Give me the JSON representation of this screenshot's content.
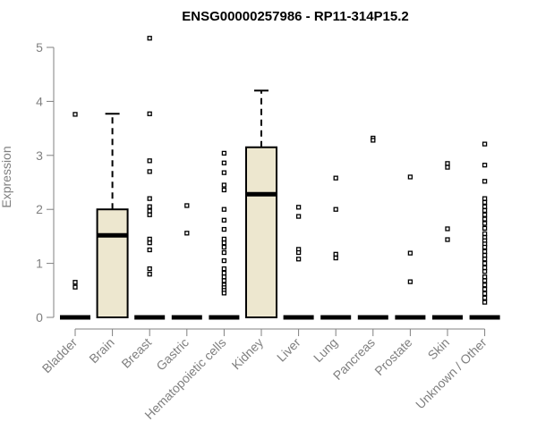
{
  "chart_data": {
    "type": "boxplot",
    "title": "ENSG00000257986 - RP11-314P15.2",
    "xlabel": "",
    "ylabel": "Expression",
    "ylim": [
      0,
      5.2
    ],
    "yticks": [
      0,
      1,
      2,
      3,
      4,
      5
    ],
    "grid": false,
    "legend": "none",
    "categories": [
      "Bladder",
      "Brain",
      "Breast",
      "Gastric",
      "Hematopoietic cells",
      "Kidney",
      "Liver",
      "Lung",
      "Pancreas",
      "Prostate",
      "Skin",
      "Unknown / Other"
    ],
    "boxes": [
      {
        "q1": 0,
        "median": 0,
        "q3": 0,
        "whisker_low": 0,
        "whisker_high": 0,
        "outliers": [
          3.76,
          0.65,
          0.56
        ]
      },
      {
        "q1": 0,
        "median": 1.52,
        "q3": 2.0,
        "whisker_low": 0,
        "whisker_high": 3.77,
        "outliers": []
      },
      {
        "q1": 0,
        "median": 0,
        "q3": 0,
        "whisker_low": 0,
        "whisker_high": 0,
        "outliers": [
          5.17,
          3.77,
          2.9,
          2.7,
          2.2,
          2.05,
          1.97,
          1.9,
          1.45,
          1.38,
          1.25,
          0.9,
          0.8
        ]
      },
      {
        "q1": 0,
        "median": 0,
        "q3": 0,
        "whisker_low": 0,
        "whisker_high": 0,
        "outliers": [
          2.07,
          1.56
        ]
      },
      {
        "q1": 0,
        "median": 0,
        "q3": 0,
        "whisker_low": 0,
        "whisker_high": 0,
        "outliers": [
          3.04,
          2.86,
          2.68,
          2.45,
          2.36,
          2.0,
          1.8,
          1.63,
          1.45,
          1.38,
          1.3,
          1.2,
          1.05,
          0.9,
          0.82,
          0.75,
          0.68,
          0.6,
          0.55,
          0.5,
          0.45
        ]
      },
      {
        "q1": 0,
        "median": 2.28,
        "q3": 3.15,
        "whisker_low": 0,
        "whisker_high": 4.2,
        "outliers": []
      },
      {
        "q1": 0,
        "median": 0,
        "q3": 0,
        "whisker_low": 0,
        "whisker_high": 0,
        "outliers": [
          2.04,
          1.87,
          1.26,
          1.2,
          1.08
        ]
      },
      {
        "q1": 0,
        "median": 0,
        "q3": 0,
        "whisker_low": 0,
        "whisker_high": 0,
        "outliers": [
          2.58,
          2.0,
          1.17,
          1.1
        ]
      },
      {
        "q1": 0,
        "median": 0,
        "q3": 0,
        "whisker_low": 0,
        "whisker_high": 0,
        "outliers": [
          3.32,
          3.28
        ]
      },
      {
        "q1": 0,
        "median": 0,
        "q3": 0,
        "whisker_low": 0,
        "whisker_high": 0,
        "outliers": [
          2.6,
          1.19,
          0.66
        ]
      },
      {
        "q1": 0,
        "median": 0,
        "q3": 0,
        "whisker_low": 0,
        "whisker_high": 0,
        "outliers": [
          2.85,
          2.78,
          1.64,
          1.44
        ]
      },
      {
        "q1": 0,
        "median": 0,
        "q3": 0,
        "whisker_low": 0,
        "whisker_high": 0,
        "outliers": [
          3.21,
          2.82,
          2.52,
          2.2,
          2.13,
          2.05,
          1.98,
          1.9,
          1.82,
          1.74,
          1.65,
          1.55,
          1.48,
          1.42,
          1.36,
          1.3,
          1.22,
          1.15,
          1.08,
          1.0,
          0.92,
          0.85,
          0.75,
          0.68,
          0.6,
          0.52,
          0.44,
          0.36,
          0.28
        ]
      }
    ],
    "colors": {
      "box_fill": "#ede7cf",
      "box_stroke": "#000000",
      "axis": "#808080",
      "text": "#808080"
    }
  }
}
